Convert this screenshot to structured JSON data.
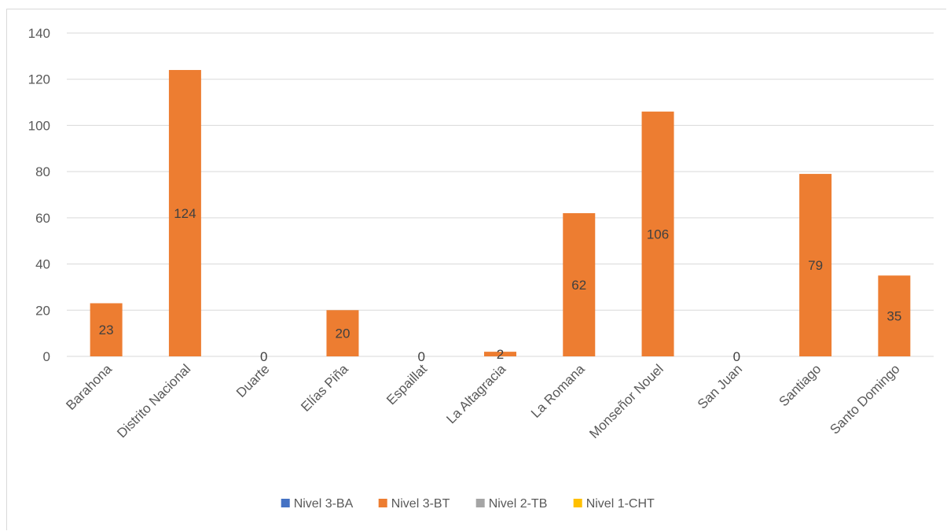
{
  "chart_data": {
    "type": "bar",
    "title": "",
    "xlabel": "",
    "ylabel": "",
    "ylim": [
      0,
      140
    ],
    "yticks": [
      0,
      20,
      40,
      60,
      80,
      100,
      120,
      140
    ],
    "grid": true,
    "legend_position": "bottom",
    "categories": [
      "Barahona",
      "Distrito Nacional",
      "Duarte",
      "Elías Piña",
      "Espaillat",
      "La Altagracia",
      "La Romana",
      "Monseñor Nouel",
      "San Juan",
      "Santiago",
      "Santo Domingo"
    ],
    "series": [
      {
        "name": "Nivel 3-BA",
        "color": "#4472c4",
        "values": [
          null,
          null,
          null,
          null,
          null,
          null,
          null,
          null,
          null,
          null,
          null
        ]
      },
      {
        "name": "Nivel 3-BT",
        "color": "#ed7d31",
        "values": [
          23,
          124,
          0,
          20,
          0,
          2,
          62,
          106,
          0,
          79,
          35
        ]
      },
      {
        "name": "Nivel 2-TB",
        "color": "#a5a5a5",
        "values": [
          null,
          null,
          null,
          null,
          null,
          null,
          null,
          null,
          null,
          null,
          null
        ]
      },
      {
        "name": "Nivel 1-CHT",
        "color": "#ffc000",
        "values": [
          null,
          null,
          null,
          null,
          null,
          null,
          null,
          null,
          null,
          null,
          null
        ]
      }
    ]
  }
}
